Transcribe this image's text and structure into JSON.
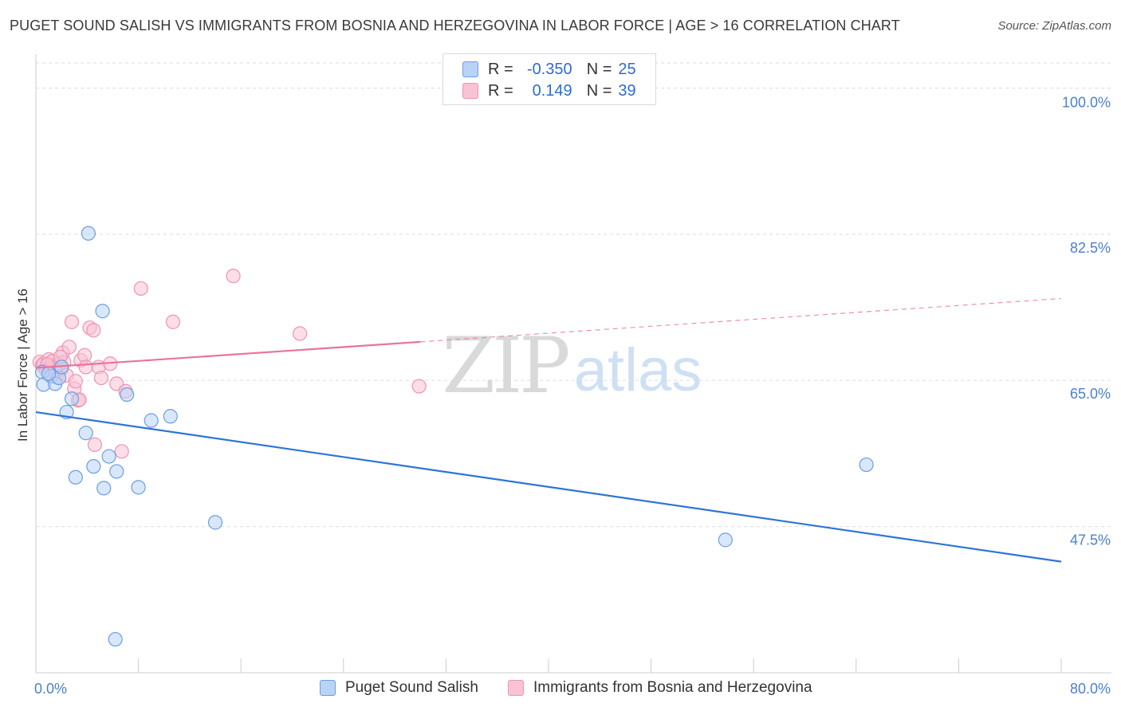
{
  "title": "PUGET SOUND SALISH VS IMMIGRANTS FROM BOSNIA AND HERZEGOVINA IN LABOR FORCE | AGE > 16 CORRELATION CHART",
  "source": "Source: ZipAtlas.com",
  "watermark": {
    "zip": "ZIP",
    "atlas": "atlas"
  },
  "legend": {
    "rows": [
      {
        "r_label": "R =",
        "r_value": "-0.350",
        "n_label": "N =",
        "n_value": "25"
      },
      {
        "r_label": "R =",
        "r_value": "0.149",
        "n_label": "N =",
        "n_value": "39"
      }
    ]
  },
  "bottom_legend": [
    "Puget Sound Salish",
    "Immigrants from Bosnia and Herzegovina"
  ],
  "colors": {
    "blue_fill": "#b9d3f5",
    "blue_stroke": "#6b9ee3",
    "blue_line": "#2e74d6",
    "pink_fill": "#f8c3d3",
    "pink_stroke": "#ef94b1",
    "pink_line": "#e8749a",
    "axis_text": "#4a7fd0",
    "grid": "#dddddd"
  },
  "chart_data": {
    "type": "scatter",
    "title": "PUGET SOUND SALISH VS IMMIGRANTS FROM BOSNIA AND HERZEGOVINA IN LABOR FORCE | AGE > 16 CORRELATION CHART",
    "xlabel": "",
    "ylabel": "In Labor Force | Age > 16",
    "xlim": [
      0,
      80
    ],
    "ylim": [
      30,
      103
    ],
    "x_tick_labels": [
      "0.0%",
      "80.0%"
    ],
    "y_ticks": [
      47.5,
      65.0,
      82.5,
      100.0
    ],
    "y_tick_labels": [
      "47.5%",
      "65.0%",
      "82.5%",
      "100.0%"
    ],
    "grid": true,
    "legend_position": "top-center",
    "series": [
      {
        "name": "Puget Sound Salish",
        "r": -0.35,
        "n": 25,
        "trend": {
          "x0": 0.0,
          "y0": 61.2,
          "x1": 80.0,
          "y1": 43.3,
          "dashed_from": null
        },
        "points": [
          [
            0.5,
            66.0
          ],
          [
            0.6,
            64.5
          ],
          [
            1.2,
            65.5
          ],
          [
            1.5,
            64.6
          ],
          [
            1.8,
            65.3
          ],
          [
            2.0,
            66.6
          ],
          [
            2.4,
            61.2
          ],
          [
            2.8,
            62.8
          ],
          [
            3.1,
            53.4
          ],
          [
            3.9,
            58.7
          ],
          [
            4.1,
            82.6
          ],
          [
            4.5,
            54.7
          ],
          [
            5.2,
            73.3
          ],
          [
            5.3,
            52.1
          ],
          [
            5.7,
            55.9
          ],
          [
            6.2,
            34.0
          ],
          [
            6.3,
            54.1
          ],
          [
            7.1,
            63.3
          ],
          [
            8.0,
            52.2
          ],
          [
            9.0,
            60.2
          ],
          [
            10.5,
            60.7
          ],
          [
            14.0,
            48.0
          ],
          [
            53.8,
            45.9
          ],
          [
            64.8,
            54.9
          ],
          [
            1.0,
            65.8
          ]
        ]
      },
      {
        "name": "Immigrants from Bosnia and Herzegovina",
        "r": 0.149,
        "n": 39,
        "trend": {
          "x0": 0.0,
          "y0": 66.5,
          "x1": 80.0,
          "y1": 74.8,
          "dashed_from": 30.0
        },
        "points": [
          [
            0.3,
            67.2
          ],
          [
            0.5,
            66.8
          ],
          [
            0.6,
            67.0
          ],
          [
            0.8,
            66.2
          ],
          [
            1.0,
            67.5
          ],
          [
            1.1,
            66.5
          ],
          [
            1.3,
            67.3
          ],
          [
            1.5,
            66.0
          ],
          [
            1.6,
            65.4
          ],
          [
            1.8,
            67.0
          ],
          [
            2.0,
            66.4
          ],
          [
            2.1,
            68.3
          ],
          [
            2.2,
            67.2
          ],
          [
            2.4,
            65.6
          ],
          [
            2.6,
            69.0
          ],
          [
            2.8,
            72.0
          ],
          [
            3.0,
            64.0
          ],
          [
            3.1,
            64.9
          ],
          [
            3.3,
            62.6
          ],
          [
            3.4,
            62.7
          ],
          [
            3.5,
            67.4
          ],
          [
            3.8,
            68.0
          ],
          [
            3.9,
            66.6
          ],
          [
            4.2,
            71.3
          ],
          [
            4.5,
            71.0
          ],
          [
            4.6,
            57.3
          ],
          [
            4.9,
            66.6
          ],
          [
            5.1,
            65.3
          ],
          [
            5.8,
            67.0
          ],
          [
            6.3,
            64.6
          ],
          [
            6.7,
            56.5
          ],
          [
            7.0,
            63.7
          ],
          [
            8.2,
            76.0
          ],
          [
            10.7,
            72.0
          ],
          [
            15.4,
            77.5
          ],
          [
            20.6,
            70.6
          ],
          [
            29.9,
            64.3
          ],
          [
            1.9,
            67.8
          ],
          [
            0.9,
            66.9
          ]
        ]
      }
    ]
  }
}
